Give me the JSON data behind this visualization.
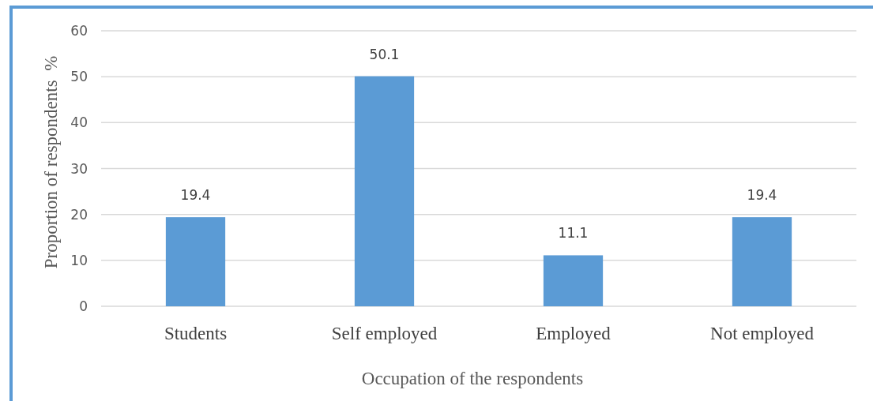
{
  "chart_data": {
    "type": "bar",
    "categories": [
      "Students",
      "Self employed",
      "Employed",
      "Not employed"
    ],
    "values": [
      19.4,
      50.1,
      11.1,
      19.4
    ],
    "color": "#5b9bd5",
    "xlabel": "Occupation of the respondents",
    "ylabel": "Proportion of respondents  %",
    "ylim": [
      0,
      60
    ],
    "yticks": [
      0,
      10,
      20,
      30,
      40,
      50,
      60
    ],
    "grid": "y",
    "data_labels": true
  }
}
